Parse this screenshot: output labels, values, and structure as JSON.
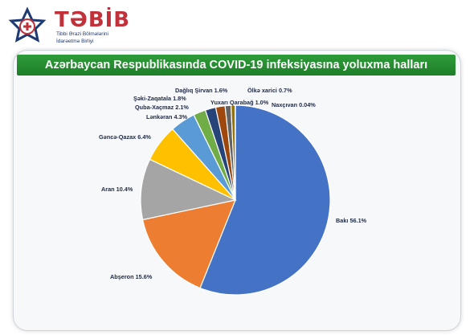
{
  "brand": {
    "name": "TƏBİB",
    "subtitle_line1": "Tibbi Ərazi Bölmələrini",
    "subtitle_line2": "İdarəetmə Birliyi"
  },
  "chart_data": {
    "type": "pie",
    "title": "Azərbaycan Respublikasında COVID-19 infeksiyasına yoluxma halları",
    "slices": [
      {
        "name": "Bakı",
        "value": 56.1,
        "label": "Bakı  56.1%",
        "color": "#4472c4"
      },
      {
        "name": "Abşeron",
        "value": 15.6,
        "label": "Abşeron 15.6%",
        "color": "#ed7d31"
      },
      {
        "name": "Aran",
        "value": 10.4,
        "label": "Aran 10.4%",
        "color": "#a5a5a5"
      },
      {
        "name": "Gəncə-Qazax",
        "value": 6.4,
        "label": "Gəncə-Qazax 6.4%",
        "color": "#ffc000"
      },
      {
        "name": "Lənkəran",
        "value": 4.3,
        "label": "Lənkəran 4.3%",
        "color": "#5b9bd5"
      },
      {
        "name": "Quba-Xaçmaz",
        "value": 2.1,
        "label": "Quba-Xaçmaz 2.1%",
        "color": "#70ad47"
      },
      {
        "name": "Şəki-Zaqatala",
        "value": 1.8,
        "label": "Şəki-Zaqatala 1.8%",
        "color": "#264478"
      },
      {
        "name": "Dağlıq Şirvan",
        "value": 1.6,
        "label": "Dağlıq Şirvan 1.6%",
        "color": "#9e480e"
      },
      {
        "name": "Yuxarı Qarabağ",
        "value": 1.0,
        "label": "Yuxarı Qarabağ 1.0%",
        "color": "#636363"
      },
      {
        "name": "Ölkə xarici",
        "value": 0.7,
        "label": "Ölkə xarici 0.7%",
        "color": "#997300"
      },
      {
        "name": "Naxçıvan",
        "value": 0.04,
        "label": "Naxçıvan 0.04%",
        "color": "#2f5597"
      }
    ],
    "legend": "none"
  }
}
